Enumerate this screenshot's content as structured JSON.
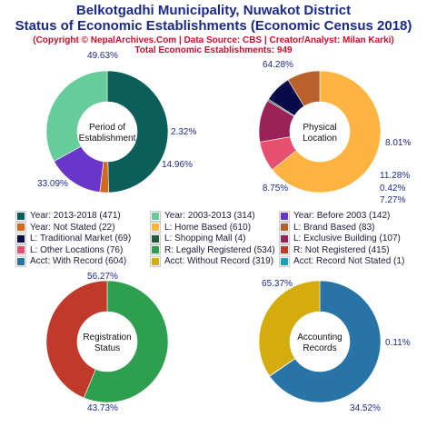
{
  "header": {
    "title_line1": "Belkotgadhi Municipality, Nuwakot District",
    "title_line2": "Status of Economic Establishments (Economic Census 2018)",
    "credit": "(Copyright © NepalArchives.Com | Data Source: CBS | Creator/Analyst: Milan Karki)",
    "total": "Total Economic Establishments: 949"
  },
  "chart_data": [
    {
      "type": "pie",
      "title": "Period of Establishment",
      "center_label": [
        "Period of",
        "Establishment"
      ],
      "slices": [
        {
          "label": "Year: 2013-2018",
          "value": 471,
          "percent": "49.63%",
          "color": "#0b5e5a"
        },
        {
          "label": "Year: Not Stated",
          "value": 22,
          "percent": "2.32%",
          "color": "#d2691e"
        },
        {
          "label": "Year: Before 2003",
          "value": 142,
          "percent": "14.96%",
          "color": "#6a35c9"
        },
        {
          "label": "Year: 2003-2013",
          "value": 314,
          "percent": "33.09%",
          "color": "#66cc99"
        }
      ]
    },
    {
      "type": "pie",
      "title": "Physical Location",
      "center_label": [
        "Physical",
        "Location"
      ],
      "slices": [
        {
          "label": "L: Home Based",
          "value": 610,
          "percent": "64.28%",
          "color": "#ffb340"
        },
        {
          "label": "L: Other Locations",
          "value": 76,
          "percent": "8.01%",
          "color": "#e6506e"
        },
        {
          "label": "L: Exclusive Building",
          "value": 107,
          "percent": "11.28%",
          "color": "#9b2257"
        },
        {
          "label": "L: Shopping Mall",
          "value": 4,
          "percent": "0.42%",
          "color": "#1f5c3a"
        },
        {
          "label": "L: Traditional Market",
          "value": 69,
          "percent": "7.27%",
          "color": "#0a0a4a"
        },
        {
          "label": "L: Brand Based",
          "value": 83,
          "percent": "8.75%",
          "color": "#b8612c"
        }
      ]
    },
    {
      "type": "pie",
      "title": "Registration Status",
      "center_label": [
        "Registration",
        "Status"
      ],
      "slices": [
        {
          "label": "R: Legally Registered",
          "value": 534,
          "percent": "56.27%",
          "color": "#2e9e4f"
        },
        {
          "label": "R: Not Registered",
          "value": 415,
          "percent": "43.73%",
          "color": "#c0392b"
        }
      ]
    },
    {
      "type": "pie",
      "title": "Accounting Records",
      "center_label": [
        "Accounting",
        "Records"
      ],
      "slices": [
        {
          "label": "Acct: With Record",
          "value": 604,
          "percent": "65.37%",
          "color": "#2874a6"
        },
        {
          "label": "Acct: Record Not Stated",
          "value": 1,
          "percent": "0.11%",
          "color": "#17a2b8"
        },
        {
          "label": "Acct: Without Record",
          "value": 319,
          "percent": "34.52%",
          "color": "#d4ac0d"
        }
      ]
    }
  ],
  "legend": [
    {
      "text": "Year: 2013-2018 (471)",
      "color": "#0b5e5a"
    },
    {
      "text": "Year: 2003-2013 (314)",
      "color": "#66cc99"
    },
    {
      "text": "Year: Before 2003 (142)",
      "color": "#6a35c9"
    },
    {
      "text": "Year: Not Stated (22)",
      "color": "#d2691e"
    },
    {
      "text": "L: Home Based (610)",
      "color": "#ffb340"
    },
    {
      "text": "L: Brand Based (83)",
      "color": "#b8612c"
    },
    {
      "text": "L: Traditional Market (69)",
      "color": "#0a0a4a"
    },
    {
      "text": "L: Shopping Mall (4)",
      "color": "#1f5c3a"
    },
    {
      "text": "L: Exclusive Building (107)",
      "color": "#9b2257"
    },
    {
      "text": "L: Other Locations (76)",
      "color": "#e6506e"
    },
    {
      "text": "R: Legally Registered (534)",
      "color": "#2e9e4f"
    },
    {
      "text": "R: Not Registered (415)",
      "color": "#c0392b"
    },
    {
      "text": "Acct: With Record (604)",
      "color": "#2874a6"
    },
    {
      "text": "Acct: Without Record (319)",
      "color": "#d4ac0d"
    },
    {
      "text": "Acct: Record Not Stated (1)",
      "color": "#17a2b8"
    }
  ]
}
